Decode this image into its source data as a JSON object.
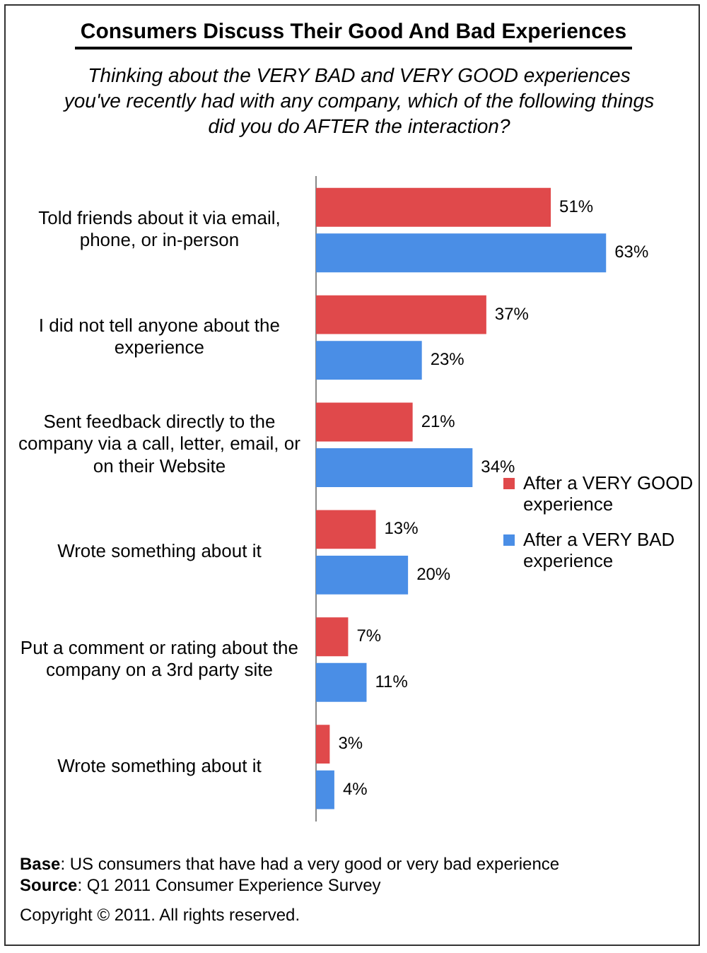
{
  "chart_data": {
    "type": "bar",
    "orientation": "horizontal",
    "title": "Consumers Discuss Their Good And Bad Experiences",
    "subtitle": "Thinking about the VERY BAD and VERY GOOD experiences you've recently had with any company, which of the following things did you do AFTER the interaction?",
    "categories": [
      "Told friends about it via email, phone, or in-person",
      "I did not tell anyone about the experience",
      "Sent feedback directly to the company via a call, letter, email, or on their Website",
      "Wrote something about it",
      "Put a comment or rating about the company on a 3rd party site",
      "Wrote something about it"
    ],
    "series": [
      {
        "name": "After a VERY GOOD experience",
        "color": "#e0494b",
        "values": [
          51,
          37,
          21,
          13,
          7,
          3
        ],
        "value_labels": [
          "51%",
          "37%",
          "21%",
          "13%",
          "7%",
          "3%"
        ]
      },
      {
        "name": "After a VERY BAD experience",
        "color": "#4a8ee6",
        "values": [
          63,
          23,
          34,
          20,
          11,
          4
        ],
        "value_labels": [
          "63%",
          "23%",
          "34%",
          "20%",
          "11%",
          "4%"
        ]
      }
    ],
    "legend": "right",
    "annotations": [
      "Base: US consumers that have had a very good or very bad experience",
      "Source: Q1 2011 Consumer Experience Survey",
      "Copyright © 2011. All rights reserved."
    ]
  }
}
